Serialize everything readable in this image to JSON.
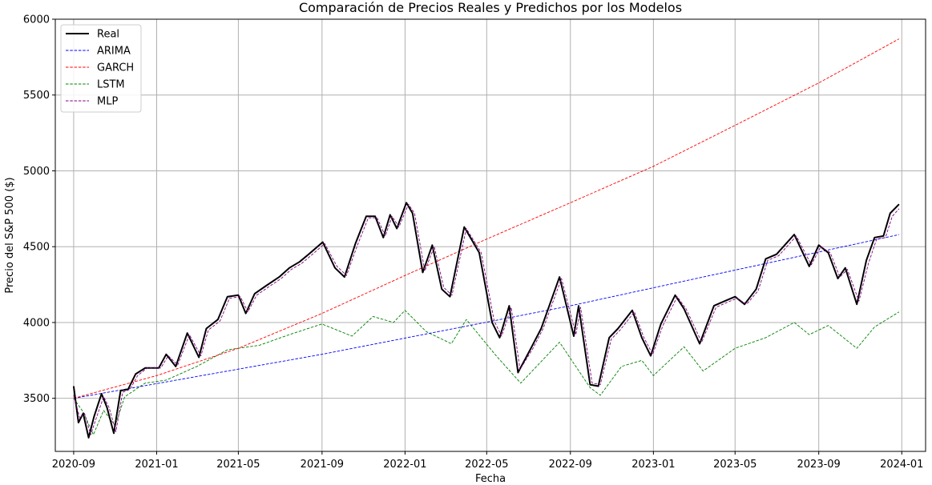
{
  "chart_data": {
    "type": "line",
    "title": "Comparación de Precios Reales y Predichos por los Modelos",
    "xlabel": "Fecha",
    "ylabel": "Precio del S&P 500 ($)",
    "ylim": [
      3150,
      6000
    ],
    "xlim": [
      "2020-08-05",
      "2024-02-05"
    ],
    "grid": true,
    "legend_position": "top-left",
    "x_ticks": [
      "2020-09",
      "2021-01",
      "2021-05",
      "2021-09",
      "2022-01",
      "2022-05",
      "2022-09",
      "2023-01",
      "2023-05",
      "2023-09",
      "2024-01"
    ],
    "y_ticks": [
      3500,
      4000,
      4500,
      5000,
      5500,
      6000
    ],
    "series": [
      {
        "name": "Real",
        "color": "#000000",
        "style": "solid",
        "points": [
          [
            "2020-09-01",
            3580
          ],
          [
            "2020-09-08",
            3340
          ],
          [
            "2020-09-15",
            3400
          ],
          [
            "2020-09-23",
            3240
          ],
          [
            "2020-10-01",
            3380
          ],
          [
            "2020-10-12",
            3530
          ],
          [
            "2020-10-20",
            3440
          ],
          [
            "2020-10-30",
            3270
          ],
          [
            "2020-11-09",
            3550
          ],
          [
            "2020-11-20",
            3560
          ],
          [
            "2020-12-01",
            3660
          ],
          [
            "2020-12-15",
            3700
          ],
          [
            "2021-01-04",
            3700
          ],
          [
            "2021-01-15",
            3790
          ],
          [
            "2021-01-29",
            3710
          ],
          [
            "2021-02-15",
            3930
          ],
          [
            "2021-03-04",
            3770
          ],
          [
            "2021-03-15",
            3960
          ],
          [
            "2021-04-01",
            4020
          ],
          [
            "2021-04-15",
            4170
          ],
          [
            "2021-05-01",
            4180
          ],
          [
            "2021-05-12",
            4060
          ],
          [
            "2021-05-25",
            4190
          ],
          [
            "2021-06-10",
            4240
          ],
          [
            "2021-06-30",
            4300
          ],
          [
            "2021-07-15",
            4360
          ],
          [
            "2021-07-30",
            4400
          ],
          [
            "2021-08-15",
            4460
          ],
          [
            "2021-09-02",
            4530
          ],
          [
            "2021-09-20",
            4360
          ],
          [
            "2021-10-04",
            4300
          ],
          [
            "2021-10-20",
            4520
          ],
          [
            "2021-11-05",
            4700
          ],
          [
            "2021-11-18",
            4700
          ],
          [
            "2021-11-30",
            4560
          ],
          [
            "2021-12-10",
            4710
          ],
          [
            "2021-12-20",
            4620
          ],
          [
            "2022-01-03",
            4790
          ],
          [
            "2022-01-12",
            4720
          ],
          [
            "2022-01-27",
            4330
          ],
          [
            "2022-02-10",
            4510
          ],
          [
            "2022-02-24",
            4220
          ],
          [
            "2022-03-08",
            4170
          ],
          [
            "2022-03-29",
            4630
          ],
          [
            "2022-04-20",
            4460
          ],
          [
            "2022-05-09",
            4000
          ],
          [
            "2022-05-20",
            3900
          ],
          [
            "2022-06-03",
            4110
          ],
          [
            "2022-06-16",
            3670
          ],
          [
            "2022-07-05",
            3830
          ],
          [
            "2022-07-20",
            3960
          ],
          [
            "2022-08-16",
            4300
          ],
          [
            "2022-09-06",
            3910
          ],
          [
            "2022-09-13",
            4110
          ],
          [
            "2022-09-30",
            3590
          ],
          [
            "2022-10-12",
            3580
          ],
          [
            "2022-10-28",
            3900
          ],
          [
            "2022-11-10",
            3960
          ],
          [
            "2022-12-01",
            4080
          ],
          [
            "2022-12-15",
            3900
          ],
          [
            "2022-12-28",
            3780
          ],
          [
            "2023-01-12",
            3990
          ],
          [
            "2023-02-02",
            4180
          ],
          [
            "2023-02-15",
            4090
          ],
          [
            "2023-03-10",
            3860
          ],
          [
            "2023-03-31",
            4110
          ],
          [
            "2023-04-15",
            4140
          ],
          [
            "2023-05-01",
            4170
          ],
          [
            "2023-05-15",
            4120
          ],
          [
            "2023-06-01",
            4220
          ],
          [
            "2023-06-15",
            4420
          ],
          [
            "2023-07-01",
            4450
          ],
          [
            "2023-07-27",
            4580
          ],
          [
            "2023-08-18",
            4370
          ],
          [
            "2023-09-01",
            4510
          ],
          [
            "2023-09-15",
            4460
          ],
          [
            "2023-09-29",
            4290
          ],
          [
            "2023-10-10",
            4360
          ],
          [
            "2023-10-27",
            4120
          ],
          [
            "2023-11-10",
            4410
          ],
          [
            "2023-11-22",
            4560
          ],
          [
            "2023-12-05",
            4570
          ],
          [
            "2023-12-15",
            4720
          ],
          [
            "2023-12-28",
            4780
          ]
        ]
      },
      {
        "name": "ARIMA",
        "color": "#0000ff",
        "style": "dashed",
        "points": [
          [
            "2020-09-01",
            3500
          ],
          [
            "2021-09-01",
            3790
          ],
          [
            "2022-09-01",
            4110
          ],
          [
            "2023-12-28",
            4580
          ]
        ]
      },
      {
        "name": "GARCH",
        "color": "#ff0000",
        "style": "dashed",
        "points": [
          [
            "2020-09-01",
            3500
          ],
          [
            "2021-01-01",
            3650
          ],
          [
            "2021-05-01",
            3830
          ],
          [
            "2021-09-01",
            4060
          ],
          [
            "2022-01-01",
            4310
          ],
          [
            "2022-05-01",
            4550
          ],
          [
            "2022-09-01",
            4790
          ],
          [
            "2023-01-01",
            5030
          ],
          [
            "2023-05-01",
            5300
          ],
          [
            "2023-09-01",
            5580
          ],
          [
            "2023-12-28",
            5870
          ]
        ]
      },
      {
        "name": "LSTM",
        "color": "#008000",
        "style": "dashed",
        "points": [
          [
            "2020-09-01",
            3500
          ],
          [
            "2020-09-15",
            3410
          ],
          [
            "2020-09-30",
            3260
          ],
          [
            "2020-10-15",
            3420
          ],
          [
            "2020-11-01",
            3320
          ],
          [
            "2020-11-15",
            3510
          ],
          [
            "2020-12-15",
            3600
          ],
          [
            "2021-01-15",
            3620
          ],
          [
            "2021-03-01",
            3710
          ],
          [
            "2021-04-15",
            3820
          ],
          [
            "2021-06-01",
            3850
          ],
          [
            "2021-07-15",
            3920
          ],
          [
            "2021-09-01",
            3990
          ],
          [
            "2021-10-15",
            3910
          ],
          [
            "2021-11-15",
            4040
          ],
          [
            "2021-12-15",
            4000
          ],
          [
            "2022-01-01",
            4080
          ],
          [
            "2022-02-01",
            3940
          ],
          [
            "2022-03-10",
            3860
          ],
          [
            "2022-04-01",
            4020
          ],
          [
            "2022-05-15",
            3780
          ],
          [
            "2022-06-20",
            3600
          ],
          [
            "2022-08-16",
            3870
          ],
          [
            "2022-09-30",
            3570
          ],
          [
            "2022-10-15",
            3520
          ],
          [
            "2022-11-15",
            3710
          ],
          [
            "2022-12-15",
            3750
          ],
          [
            "2023-01-01",
            3650
          ],
          [
            "2023-02-15",
            3840
          ],
          [
            "2023-03-15",
            3680
          ],
          [
            "2023-05-01",
            3830
          ],
          [
            "2023-06-15",
            3900
          ],
          [
            "2023-07-27",
            4000
          ],
          [
            "2023-08-18",
            3920
          ],
          [
            "2023-09-15",
            3980
          ],
          [
            "2023-10-27",
            3830
          ],
          [
            "2023-11-22",
            3970
          ],
          [
            "2023-12-28",
            4070
          ]
        ]
      },
      {
        "name": "MLP",
        "color": "#800080",
        "style": "dashed",
        "points": [
          [
            "2020-09-01",
            3520
          ],
          [
            "2020-09-10",
            3370
          ],
          [
            "2020-09-17",
            3400
          ],
          [
            "2020-09-26",
            3260
          ],
          [
            "2020-10-05",
            3380
          ],
          [
            "2020-10-15",
            3510
          ],
          [
            "2020-10-23",
            3440
          ],
          [
            "2020-11-02",
            3280
          ],
          [
            "2020-11-12",
            3540
          ],
          [
            "2020-11-23",
            3560
          ],
          [
            "2020-12-04",
            3650
          ],
          [
            "2020-12-18",
            3700
          ],
          [
            "2021-01-07",
            3700
          ],
          [
            "2021-01-18",
            3780
          ],
          [
            "2021-02-01",
            3720
          ],
          [
            "2021-02-18",
            3920
          ],
          [
            "2021-03-07",
            3780
          ],
          [
            "2021-03-18",
            3950
          ],
          [
            "2021-04-04",
            4010
          ],
          [
            "2021-04-18",
            4160
          ],
          [
            "2021-05-04",
            4170
          ],
          [
            "2021-05-15",
            4070
          ],
          [
            "2021-05-28",
            4180
          ],
          [
            "2021-06-13",
            4230
          ],
          [
            "2021-07-03",
            4290
          ],
          [
            "2021-07-18",
            4350
          ],
          [
            "2021-08-02",
            4390
          ],
          [
            "2021-08-18",
            4450
          ],
          [
            "2021-09-05",
            4520
          ],
          [
            "2021-09-23",
            4370
          ],
          [
            "2021-10-07",
            4310
          ],
          [
            "2021-10-23",
            4510
          ],
          [
            "2021-11-08",
            4690
          ],
          [
            "2021-11-21",
            4690
          ],
          [
            "2021-12-03",
            4570
          ],
          [
            "2021-12-13",
            4700
          ],
          [
            "2021-12-23",
            4630
          ],
          [
            "2022-01-06",
            4780
          ],
          [
            "2022-01-15",
            4720
          ],
          [
            "2022-01-30",
            4340
          ],
          [
            "2022-02-13",
            4500
          ],
          [
            "2022-02-27",
            4230
          ],
          [
            "2022-03-11",
            4180
          ],
          [
            "2022-04-01",
            4620
          ],
          [
            "2022-04-23",
            4460
          ],
          [
            "2022-05-12",
            4010
          ],
          [
            "2022-05-23",
            3910
          ],
          [
            "2022-06-06",
            4100
          ],
          [
            "2022-06-19",
            3690
          ],
          [
            "2022-07-08",
            3830
          ],
          [
            "2022-07-23",
            3960
          ],
          [
            "2022-08-19",
            4290
          ],
          [
            "2022-09-09",
            3920
          ],
          [
            "2022-09-16",
            4100
          ],
          [
            "2022-10-03",
            3600
          ],
          [
            "2022-10-15",
            3590
          ],
          [
            "2022-10-31",
            3890
          ],
          [
            "2022-11-13",
            3950
          ],
          [
            "2022-12-04",
            4070
          ],
          [
            "2022-12-18",
            3900
          ],
          [
            "2022-12-31",
            3790
          ],
          [
            "2023-01-15",
            3980
          ],
          [
            "2023-02-05",
            4170
          ],
          [
            "2023-02-18",
            4090
          ],
          [
            "2023-03-13",
            3870
          ],
          [
            "2023-04-03",
            4100
          ],
          [
            "2023-04-18",
            4130
          ],
          [
            "2023-05-04",
            4160
          ],
          [
            "2023-05-18",
            4120
          ],
          [
            "2023-06-04",
            4210
          ],
          [
            "2023-06-18",
            4410
          ],
          [
            "2023-07-04",
            4440
          ],
          [
            "2023-07-30",
            4570
          ],
          [
            "2023-08-21",
            4380
          ],
          [
            "2023-09-04",
            4500
          ],
          [
            "2023-09-18",
            4460
          ],
          [
            "2023-10-02",
            4300
          ],
          [
            "2023-10-13",
            4350
          ],
          [
            "2023-10-30",
            4140
          ],
          [
            "2023-11-13",
            4390
          ],
          [
            "2023-11-25",
            4550
          ],
          [
            "2023-12-08",
            4560
          ],
          [
            "2023-12-18",
            4700
          ],
          [
            "2023-12-28",
            4750
          ]
        ]
      }
    ]
  }
}
